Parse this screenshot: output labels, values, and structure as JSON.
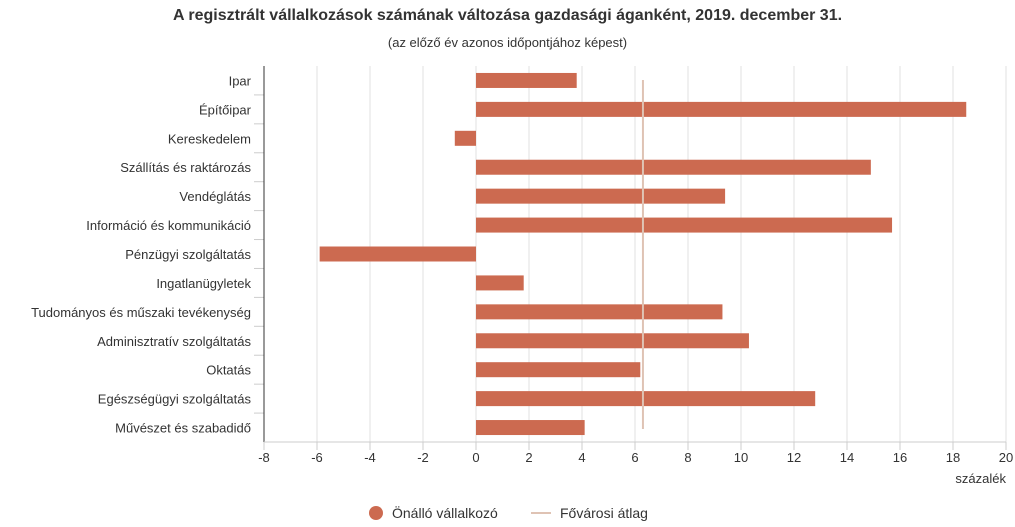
{
  "chart_data": {
    "type": "bar",
    "orientation": "horizontal",
    "title": "A regisztrált vállalkozások számának változása gazdasági áganként, 2019. december 31.",
    "subtitle": "(az előző év azonos időpontjához képest)",
    "xlabel": "százalék",
    "xlim": [
      -8,
      20
    ],
    "xticks": [
      -8,
      -6,
      -4,
      -2,
      0,
      2,
      4,
      6,
      8,
      10,
      12,
      14,
      16,
      18,
      20
    ],
    "grid": true,
    "legend_position": "bottom",
    "categories": [
      "Ipar",
      "Építőipar",
      "Kereskedelem",
      "Szállítás és raktározás",
      "Vendéglátás",
      "Információ és kommunikáció",
      "Pénzügyi szolgáltatás",
      "Ingatlanügyletek",
      "Tudományos és műszaki tevékenység",
      "Adminisztratív szolgáltatás",
      "Oktatás",
      "Egészségügyi szolgáltatás",
      "Művészet és szabadidő"
    ],
    "series": [
      {
        "name": "Önálló vállalkozó",
        "color": "#cc6a50",
        "values": [
          3.8,
          18.5,
          -0.8,
          14.9,
          9.4,
          15.7,
          -5.9,
          1.8,
          9.3,
          10.3,
          6.2,
          12.8,
          4.1
        ]
      }
    ],
    "reference_line": {
      "name": "Fővárosi átlag",
      "color": "#dfc3b4",
      "value": 6.3
    }
  }
}
